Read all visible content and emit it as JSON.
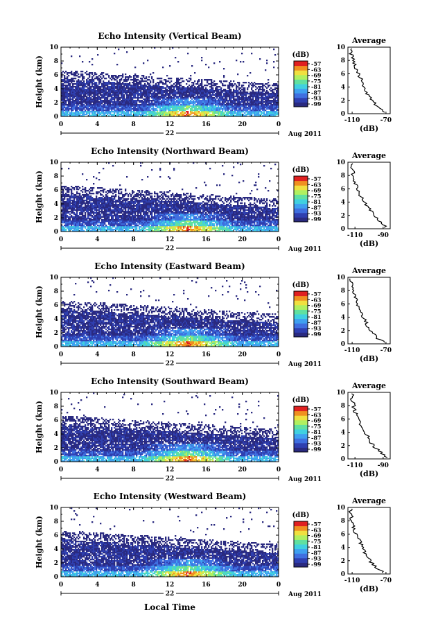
{
  "figure": {
    "x_axis_label": "Local Time",
    "date_label": "Aug 2011",
    "day_label": "22",
    "colorbar_unit": "(dB)",
    "average_title": "Average",
    "average_xlabel": "(dB)"
  },
  "colors": {
    "scale": [
      "#2a2a80",
      "#2f3fb0",
      "#3f6fe0",
      "#3fa0f0",
      "#40d0e0",
      "#60e0a0",
      "#b0f060",
      "#f0e040",
      "#f09020",
      "#e02020"
    ]
  },
  "chart_data": [
    {
      "type": "heatmap",
      "title": "Echo Intensity (Vertical Beam)",
      "xlabel": "",
      "ylabel": "Height (km)",
      "x_ticks": [
        "0",
        "4",
        "8",
        "12",
        "16",
        "20",
        "0"
      ],
      "y_ticks": [
        "0",
        "2",
        "4",
        "6",
        "8",
        "10"
      ],
      "xlim": [
        0,
        24
      ],
      "ylim": [
        0,
        10
      ],
      "colorbar_ticks": [
        "-57",
        "-63",
        "-69",
        "-75",
        "-81",
        "-87",
        "-93",
        "-99"
      ],
      "colorbar_range": [
        -99,
        -57
      ],
      "average": {
        "title": "Average",
        "xlabel": "(dB)",
        "x_ticks": [
          "-110",
          "-70"
        ],
        "y_ticks": [
          "0",
          "2",
          "4",
          "6",
          "8",
          "10"
        ],
        "xlim": [
          -115,
          -65
        ],
        "ylim": [
          0,
          10
        ],
        "profile": {
          "heights": [
            0.2,
            1,
            2,
            3,
            4,
            5,
            6,
            7,
            8,
            9,
            9.8
          ],
          "db": [
            -72,
            -80,
            -86,
            -92,
            -96,
            -99,
            -103,
            -106,
            -109,
            -111,
            -112
          ]
        }
      }
    },
    {
      "type": "heatmap",
      "title": "Echo Intensity (Northward Beam)",
      "xlabel": "",
      "ylabel": "Height (km)",
      "x_ticks": [
        "0",
        "4",
        "8",
        "12",
        "16",
        "20",
        "0"
      ],
      "y_ticks": [
        "0",
        "2",
        "4",
        "6",
        "8",
        "10"
      ],
      "xlim": [
        0,
        24
      ],
      "ylim": [
        0,
        10
      ],
      "colorbar_ticks": [
        "-57",
        "-63",
        "-69",
        "-75",
        "-81",
        "-87",
        "-93",
        "-99"
      ],
      "colorbar_range": [
        -99,
        -57
      ],
      "average": {
        "title": "Average",
        "xlabel": "(dB)",
        "x_ticks": [
          "-110",
          "-90"
        ],
        "y_ticks": [
          "0",
          "2",
          "4",
          "6",
          "8",
          "10"
        ],
        "xlim": [
          -115,
          -85
        ],
        "ylim": [
          0,
          10
        ],
        "profile": {
          "heights": [
            0.2,
            1,
            2,
            3,
            4,
            5,
            6,
            7,
            8,
            9,
            9.8
          ],
          "db": [
            -88,
            -92,
            -96,
            -100,
            -103,
            -106,
            -108,
            -110,
            -111,
            -112,
            -112
          ]
        }
      }
    },
    {
      "type": "heatmap",
      "title": "Echo Intensity (Eastward Beam)",
      "xlabel": "",
      "ylabel": "Height (km)",
      "x_ticks": [
        "0",
        "4",
        "8",
        "12",
        "16",
        "20",
        "0"
      ],
      "y_ticks": [
        "0",
        "2",
        "4",
        "6",
        "8",
        "10"
      ],
      "xlim": [
        0,
        24
      ],
      "ylim": [
        0,
        10
      ],
      "colorbar_ticks": [
        "-57",
        "-63",
        "-69",
        "-75",
        "-81",
        "-87",
        "-93",
        "-99"
      ],
      "colorbar_range": [
        -99,
        -57
      ],
      "average": {
        "title": "Average",
        "xlabel": "(dB)",
        "x_ticks": [
          "-110",
          "-70"
        ],
        "y_ticks": [
          "0",
          "2",
          "4",
          "6",
          "8",
          "10"
        ],
        "xlim": [
          -115,
          -65
        ],
        "ylim": [
          0,
          10
        ],
        "profile": {
          "heights": [
            0.2,
            1,
            2,
            3,
            4,
            5,
            6,
            7,
            8,
            9,
            9.8
          ],
          "db": [
            -72,
            -82,
            -88,
            -93,
            -97,
            -100,
            -104,
            -107,
            -109,
            -111,
            -112
          ]
        }
      }
    },
    {
      "type": "heatmap",
      "title": "Echo Intensity (Southward Beam)",
      "xlabel": "",
      "ylabel": "Height (km)",
      "x_ticks": [
        "0",
        "4",
        "8",
        "12",
        "16",
        "20",
        "0"
      ],
      "y_ticks": [
        "0",
        "2",
        "4",
        "6",
        "8",
        "10"
      ],
      "xlim": [
        0,
        24
      ],
      "ylim": [
        0,
        10
      ],
      "colorbar_ticks": [
        "-57",
        "-63",
        "-69",
        "-75",
        "-81",
        "-87",
        "-93",
        "-99"
      ],
      "colorbar_range": [
        -99,
        -57
      ],
      "average": {
        "title": "Average",
        "xlabel": "(dB)",
        "x_ticks": [
          "-110",
          "-90"
        ],
        "y_ticks": [
          "0",
          "2",
          "4",
          "6",
          "8",
          "10"
        ],
        "xlim": [
          -115,
          -85
        ],
        "ylim": [
          0,
          10
        ],
        "profile": {
          "heights": [
            0.2,
            1,
            2,
            3,
            4,
            5,
            6,
            7,
            8,
            9,
            9.8
          ],
          "db": [
            -87,
            -92,
            -97,
            -100,
            -103,
            -106,
            -108,
            -110,
            -111,
            -112,
            -112
          ]
        }
      }
    },
    {
      "type": "heatmap",
      "title": "Echo Intensity (Westward Beam)",
      "xlabel": "Local Time",
      "ylabel": "Height (km)",
      "x_ticks": [
        "0",
        "4",
        "8",
        "12",
        "16",
        "20",
        "0"
      ],
      "y_ticks": [
        "0",
        "2",
        "4",
        "6",
        "8",
        "10"
      ],
      "xlim": [
        0,
        24
      ],
      "ylim": [
        0,
        10
      ],
      "colorbar_ticks": [
        "-57",
        "-63",
        "-69",
        "-75",
        "-81",
        "-87",
        "-93",
        "-99"
      ],
      "colorbar_range": [
        -99,
        -57
      ],
      "average": {
        "title": "Average",
        "xlabel": "(dB)",
        "x_ticks": [
          "-110",
          "-70"
        ],
        "y_ticks": [
          "0",
          "2",
          "4",
          "6",
          "8",
          "10"
        ],
        "xlim": [
          -115,
          -65
        ],
        "ylim": [
          0,
          10
        ],
        "profile": {
          "heights": [
            0.2,
            1,
            2,
            3,
            4,
            5,
            6,
            7,
            8,
            9,
            9.8
          ],
          "db": [
            -73,
            -82,
            -89,
            -94,
            -98,
            -101,
            -105,
            -108,
            -110,
            -111,
            -112
          ]
        }
      }
    }
  ]
}
